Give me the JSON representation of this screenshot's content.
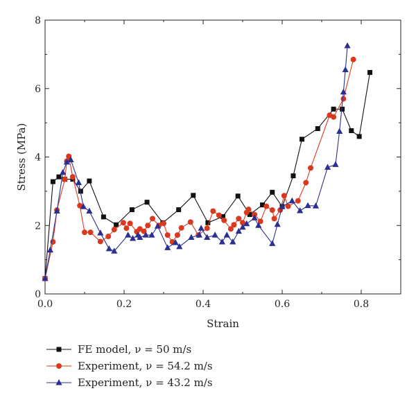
{
  "chart_data": {
    "type": "line",
    "xlabel": "Strain",
    "ylabel": "Stress (MPa)",
    "xlim": [
      0,
      0.9
    ],
    "ylim": [
      0,
      8
    ],
    "x_ticks": [
      "0.0",
      "0.2",
      "0.4",
      "0.6",
      "0.8"
    ],
    "y_ticks": [
      "0",
      "2",
      "4",
      "6",
      "8"
    ],
    "grid": false,
    "legend_position": "bottom-left",
    "series": [
      {
        "name": "FE model, ν = 50 m/s",
        "marker": "square",
        "color": "#111111",
        "points": [
          [
            0,
            0.45
          ],
          [
            0.02,
            3.28
          ],
          [
            0.035,
            3.42
          ],
          [
            0.05,
            3.35
          ],
          [
            0.07,
            3.35
          ],
          [
            0.09,
            3.0
          ],
          [
            0.112,
            3.3
          ],
          [
            0.148,
            2.25
          ],
          [
            0.18,
            2.02
          ],
          [
            0.22,
            2.46
          ],
          [
            0.258,
            2.68
          ],
          [
            0.298,
            2.08
          ],
          [
            0.338,
            2.46
          ],
          [
            0.375,
            2.88
          ],
          [
            0.412,
            2.08
          ],
          [
            0.45,
            2.26
          ],
          [
            0.488,
            2.86
          ],
          [
            0.518,
            2.32
          ],
          [
            0.55,
            2.6
          ],
          [
            0.575,
            2.97
          ],
          [
            0.6,
            2.55
          ],
          [
            0.628,
            3.45
          ],
          [
            0.65,
            4.52
          ],
          [
            0.69,
            4.83
          ],
          [
            0.73,
            5.4
          ],
          [
            0.752,
            5.4
          ],
          [
            0.775,
            4.77
          ],
          [
            0.795,
            4.6
          ],
          [
            0.822,
            6.47
          ]
        ]
      },
      {
        "name": "Experiment, ν = 54.2 m/s",
        "marker": "circle",
        "color": "#d93a1f",
        "points": [
          [
            0,
            0.45
          ],
          [
            0.02,
            1.52
          ],
          [
            0.03,
            2.45
          ],
          [
            0.05,
            3.35
          ],
          [
            0.055,
            3.88
          ],
          [
            0.06,
            4.02
          ],
          [
            0.07,
            3.42
          ],
          [
            0.088,
            2.58
          ],
          [
            0.1,
            1.8
          ],
          [
            0.115,
            1.8
          ],
          [
            0.14,
            1.53
          ],
          [
            0.16,
            1.68
          ],
          [
            0.175,
            1.88
          ],
          [
            0.198,
            2.08
          ],
          [
            0.206,
            1.92
          ],
          [
            0.215,
            2.06
          ],
          [
            0.232,
            1.82
          ],
          [
            0.24,
            1.9
          ],
          [
            0.25,
            1.83
          ],
          [
            0.26,
            2.0
          ],
          [
            0.272,
            2.2
          ],
          [
            0.288,
            2.0
          ],
          [
            0.3,
            2.06
          ],
          [
            0.31,
            1.72
          ],
          [
            0.322,
            1.52
          ],
          [
            0.335,
            1.72
          ],
          [
            0.345,
            1.93
          ],
          [
            0.368,
            2.1
          ],
          [
            0.388,
            1.72
          ],
          [
            0.41,
            1.92
          ],
          [
            0.425,
            2.42
          ],
          [
            0.44,
            2.3
          ],
          [
            0.453,
            2.15
          ],
          [
            0.47,
            1.9
          ],
          [
            0.478,
            2.02
          ],
          [
            0.49,
            2.2
          ],
          [
            0.5,
            2.08
          ],
          [
            0.51,
            2.38
          ],
          [
            0.515,
            2.47
          ],
          [
            0.53,
            2.32
          ],
          [
            0.545,
            2.12
          ],
          [
            0.56,
            2.56
          ],
          [
            0.575,
            2.45
          ],
          [
            0.58,
            2.2
          ],
          [
            0.595,
            2.45
          ],
          [
            0.605,
            2.87
          ],
          [
            0.615,
            2.56
          ],
          [
            0.64,
            2.72
          ],
          [
            0.66,
            3.25
          ],
          [
            0.672,
            3.68
          ],
          [
            0.72,
            5.22
          ],
          [
            0.73,
            5.17
          ],
          [
            0.755,
            5.7
          ],
          [
            0.78,
            6.85
          ]
        ]
      },
      {
        "name": "Experiment, ν = 43.2 m/s",
        "marker": "triangle",
        "color": "#2b2f8f",
        "points": [
          [
            0,
            0.45
          ],
          [
            0.013,
            1.28
          ],
          [
            0.03,
            2.42
          ],
          [
            0.045,
            3.55
          ],
          [
            0.055,
            3.85
          ],
          [
            0.065,
            3.92
          ],
          [
            0.085,
            3.25
          ],
          [
            0.097,
            2.55
          ],
          [
            0.112,
            2.42
          ],
          [
            0.14,
            1.78
          ],
          [
            0.162,
            1.32
          ],
          [
            0.175,
            1.25
          ],
          [
            0.21,
            1.72
          ],
          [
            0.222,
            1.62
          ],
          [
            0.235,
            1.72
          ],
          [
            0.24,
            1.65
          ],
          [
            0.255,
            1.72
          ],
          [
            0.27,
            1.72
          ],
          [
            0.285,
            1.98
          ],
          [
            0.31,
            1.35
          ],
          [
            0.33,
            1.5
          ],
          [
            0.34,
            1.38
          ],
          [
            0.37,
            1.65
          ],
          [
            0.39,
            1.72
          ],
          [
            0.395,
            1.92
          ],
          [
            0.41,
            1.65
          ],
          [
            0.43,
            1.72
          ],
          [
            0.448,
            1.52
          ],
          [
            0.46,
            1.72
          ],
          [
            0.475,
            1.52
          ],
          [
            0.49,
            1.83
          ],
          [
            0.5,
            1.95
          ],
          [
            0.51,
            2.05
          ],
          [
            0.53,
            2.22
          ],
          [
            0.54,
            2.0
          ],
          [
            0.575,
            1.47
          ],
          [
            0.588,
            2.03
          ],
          [
            0.6,
            2.55
          ],
          [
            0.625,
            2.72
          ],
          [
            0.645,
            2.43
          ],
          [
            0.665,
            2.58
          ],
          [
            0.685,
            2.57
          ],
          [
            0.715,
            3.7
          ],
          [
            0.735,
            3.78
          ],
          [
            0.745,
            4.75
          ],
          [
            0.755,
            5.9
          ],
          [
            0.76,
            6.55
          ],
          [
            0.765,
            7.25
          ]
        ]
      }
    ]
  }
}
